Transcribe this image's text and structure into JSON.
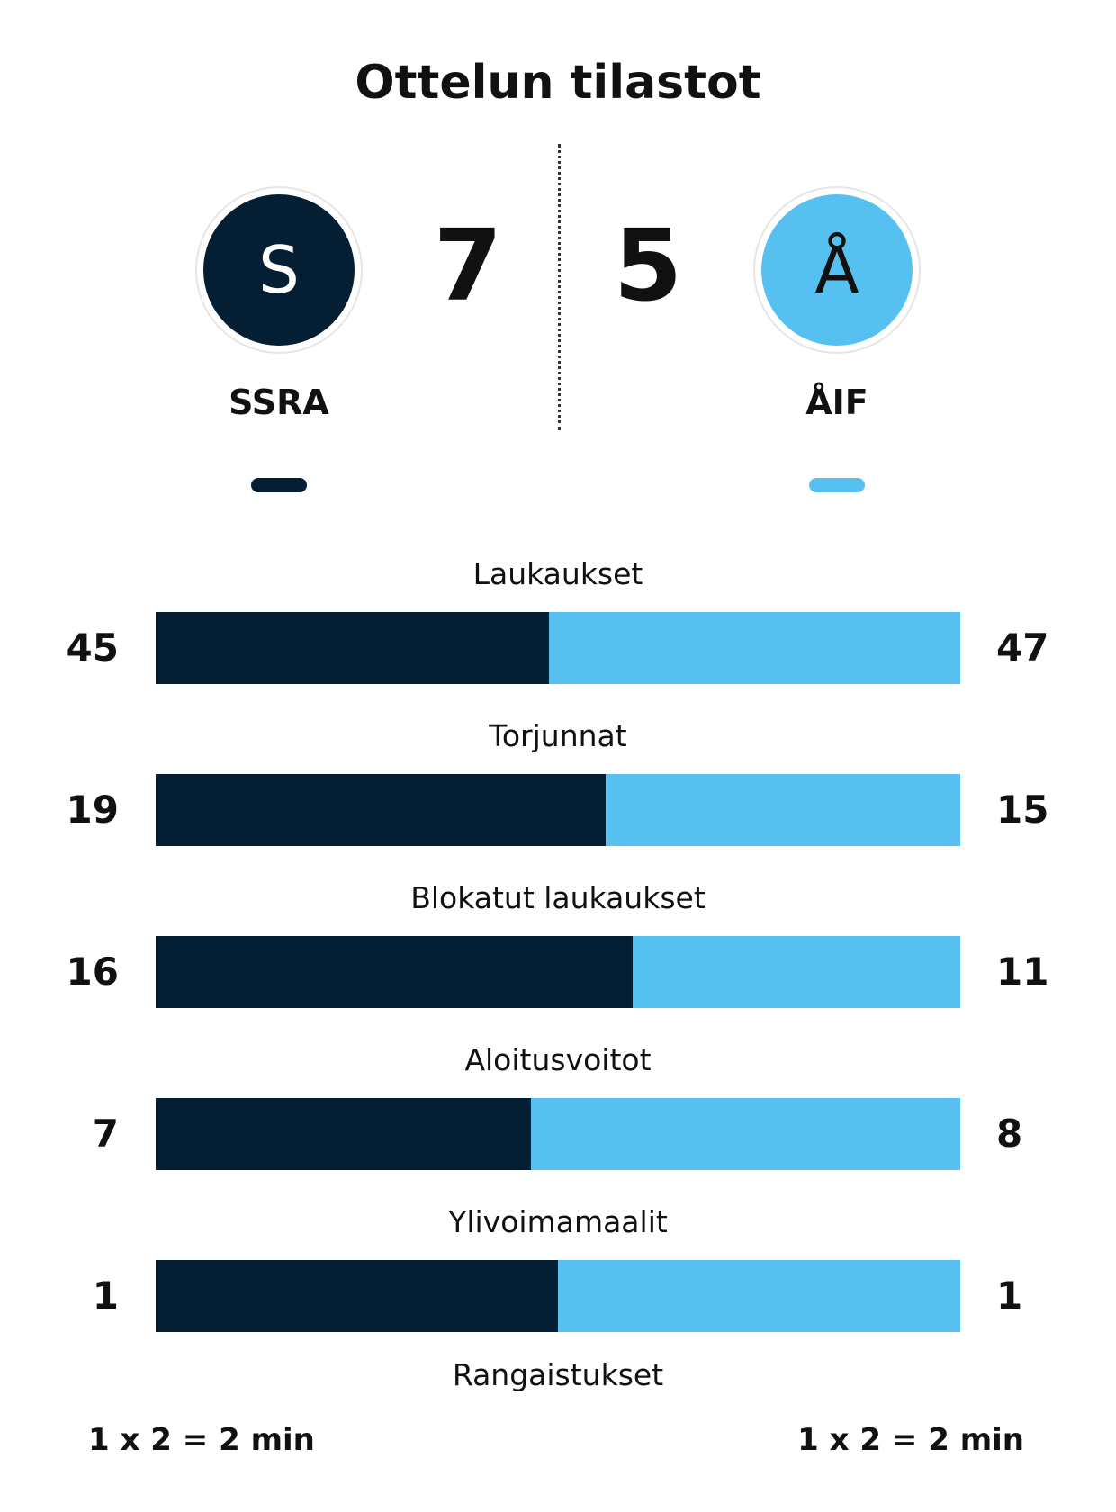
{
  "title": "Ottelun tilastot",
  "colors": {
    "home": "#041f33",
    "away": "#56c1f0"
  },
  "home": {
    "name": "SSRA",
    "logo_letter": "S",
    "score": "7",
    "penalties": "1 x 2 = 2 min"
  },
  "away": {
    "name": "ÅIF",
    "logo_letter": "Å",
    "score": "5",
    "penalties": "1 x 2 = 2 min"
  },
  "stats": [
    {
      "label": "Laukaukset",
      "home": 45,
      "away": 47
    },
    {
      "label": "Torjunnat",
      "home": 19,
      "away": 15
    },
    {
      "label": "Blokatut laukaukset",
      "home": 16,
      "away": 11
    },
    {
      "label": "Aloitusvoitot",
      "home": 7,
      "away": 8
    },
    {
      "label": "Ylivoimamaalit",
      "home": 1,
      "away": 1
    }
  ],
  "penalties_label": "Rangaistukset"
}
